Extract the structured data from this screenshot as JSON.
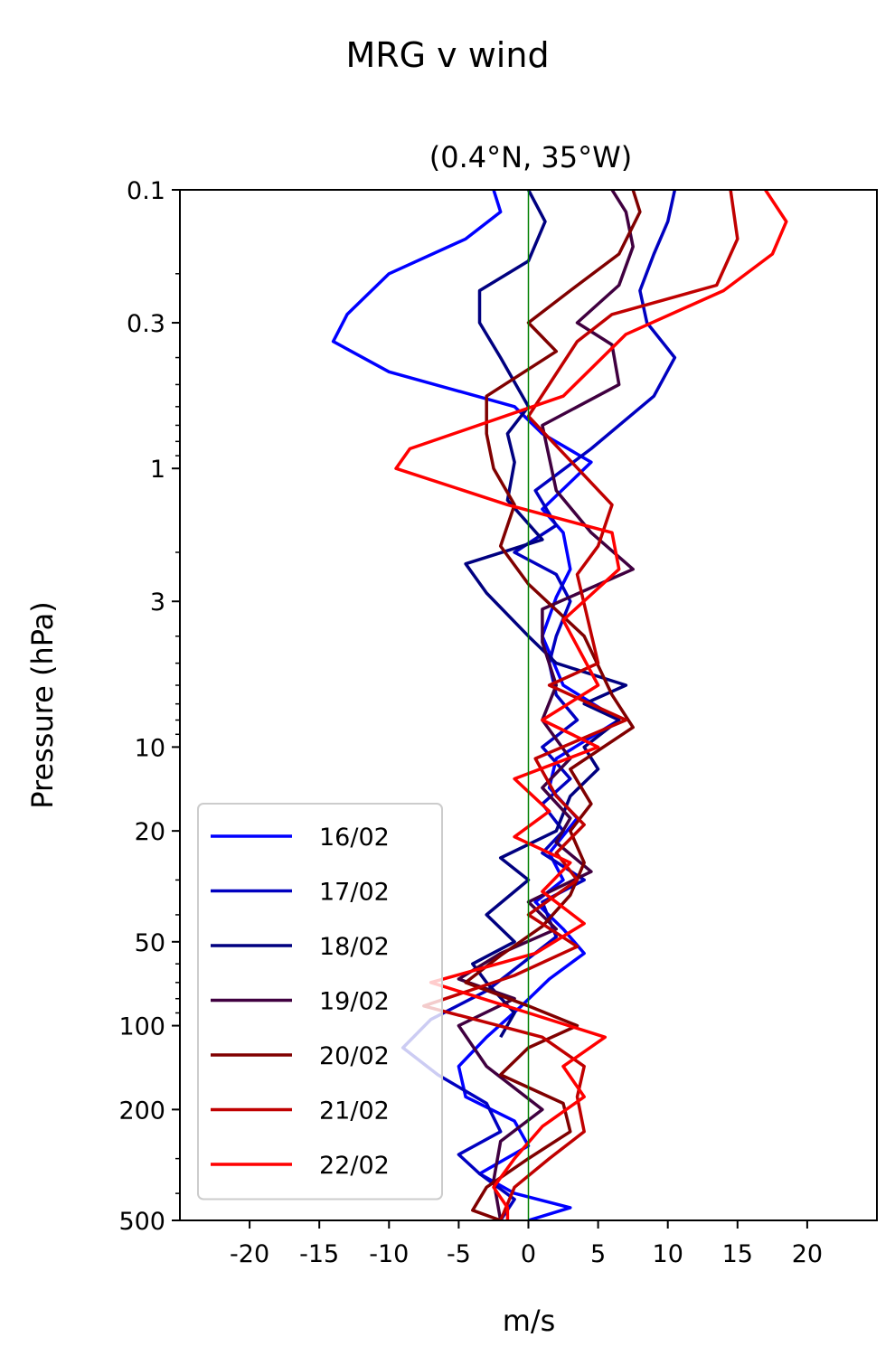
{
  "chart_data": {
    "type": "line",
    "title": "MRG v wind",
    "subtitle": "(0.4°N, 35°W)",
    "xlabel": "m/s",
    "ylabel": "Pressure (hPa)",
    "xlim": [
      -25,
      25
    ],
    "ylim": [
      500,
      0.1
    ],
    "y_scale": "log",
    "x_ticks": [
      -20,
      -15,
      -10,
      -5,
      0,
      5,
      10,
      15,
      20
    ],
    "x_tick_labels": [
      "-20",
      "-15",
      "-10",
      "-5",
      "0",
      "5",
      "10",
      "15",
      "20"
    ],
    "y_ticks": [
      0.1,
      0.3,
      1,
      3,
      10,
      20,
      50,
      100,
      200,
      500
    ],
    "y_tick_labels": [
      "0.1",
      "0.3",
      "1",
      "3",
      "10",
      "20",
      "50",
      "100",
      "200",
      "500"
    ],
    "reference_line": {
      "x": 0,
      "color": "#008000"
    },
    "legend_position": "lower-left",
    "grid": false,
    "series": [
      {
        "name": "16/02",
        "color": "#0000ff",
        "v": [
          -2.5,
          -2,
          -4.5,
          -10,
          -13,
          -14,
          -10,
          -1,
          1,
          4.5,
          1,
          2.5,
          3,
          2,
          1,
          2.5,
          6.5,
          2,
          1.5,
          3.5,
          1.5,
          2.5,
          0.5,
          2.5,
          4,
          1.5,
          -0.5,
          -3,
          -5,
          -4.5,
          -1,
          0,
          -3.5,
          -1,
          3,
          0
        ],
        "p": [
          0.1,
          0.12,
          0.15,
          0.2,
          0.28,
          0.35,
          0.45,
          0.6,
          0.75,
          0.95,
          1.4,
          1.7,
          2.3,
          2.9,
          4,
          6,
          8,
          11,
          14,
          18,
          24,
          30,
          36,
          45,
          55,
          68,
          85,
          110,
          140,
          180,
          220,
          270,
          340,
          400,
          450,
          500
        ]
      },
      {
        "name": "17/02",
        "color": "#0000c0",
        "v": [
          10.5,
          10,
          9,
          8,
          8.5,
          10.5,
          9,
          4.5,
          0.5,
          2,
          -1,
          2,
          3,
          2,
          1.5,
          2,
          3.5,
          1,
          3,
          1,
          2.5,
          1,
          4,
          1,
          2,
          -0.5,
          -3,
          -7,
          -9,
          -6.5,
          -3,
          -2,
          -5,
          -3.5,
          -1,
          -2
        ],
        "p": [
          0.1,
          0.13,
          0.17,
          0.23,
          0.3,
          0.4,
          0.55,
          0.85,
          1.2,
          1.6,
          2,
          2.4,
          3,
          4,
          5,
          6.5,
          8,
          10,
          13,
          16,
          20,
          24,
          30,
          36,
          48,
          60,
          75,
          95,
          120,
          150,
          190,
          240,
          290,
          340,
          420,
          500
        ]
      },
      {
        "name": "18/02",
        "color": "#000080",
        "v": [
          0,
          1.2,
          0,
          -3.5,
          -3.5,
          -2,
          0,
          -1.5,
          -1,
          -1.5,
          1,
          -4.5,
          -3,
          0,
          2,
          7,
          4,
          6.5,
          4,
          5,
          3,
          2,
          -2,
          0,
          -3,
          -1,
          -4,
          -3,
          -1,
          -2
        ],
        "p": [
          0.1,
          0.13,
          0.18,
          0.23,
          0.3,
          0.4,
          0.6,
          0.75,
          0.95,
          1.3,
          1.8,
          2.2,
          2.8,
          4,
          5,
          6,
          7,
          8,
          10,
          12,
          15,
          20,
          25,
          30,
          40,
          50,
          60,
          70,
          90,
          110
        ]
      },
      {
        "name": "19/02",
        "color": "#400040",
        "v": [
          6,
          7,
          7.5,
          6.5,
          3.5,
          6,
          6.5,
          1,
          2,
          4.5,
          7.5,
          1,
          1,
          2,
          1,
          3,
          1,
          3,
          2,
          4.5,
          0,
          2,
          -2,
          -5,
          -1,
          -5,
          -3,
          1,
          -2,
          -2.5,
          -2
        ],
        "p": [
          0.1,
          0.12,
          0.16,
          0.22,
          0.3,
          0.36,
          0.5,
          0.7,
          1.2,
          1.7,
          2.3,
          3.2,
          4.2,
          6,
          8,
          11,
          14,
          18,
          22,
          28,
          36,
          45,
          55,
          68,
          80,
          100,
          140,
          200,
          260,
          360,
          500
        ]
      },
      {
        "name": "20/02",
        "color": "#800000",
        "v": [
          7.5,
          8,
          6.5,
          3,
          0,
          2,
          -3,
          -3,
          -2.5,
          -1,
          -2,
          0,
          4,
          6,
          7.5,
          3,
          4.5,
          3,
          4,
          3,
          1,
          -2,
          -4.5,
          0,
          3.5,
          0,
          -2,
          2.5,
          3,
          0,
          -3,
          -4,
          -2
        ],
        "p": [
          0.1,
          0.12,
          0.17,
          0.23,
          0.3,
          0.38,
          0.55,
          0.75,
          1,
          1.35,
          1.9,
          2.6,
          4,
          6.5,
          8.5,
          12,
          16,
          20,
          26,
          34,
          44,
          56,
          70,
          85,
          100,
          120,
          150,
          190,
          240,
          300,
          380,
          460,
          500
        ]
      },
      {
        "name": "21/02",
        "color": "#c00000",
        "v": [
          14.5,
          15,
          13.5,
          6,
          3.5,
          0,
          6,
          5,
          3.5,
          5,
          1.5,
          7,
          0.5,
          2,
          4,
          2,
          3.5,
          0,
          3.5,
          -1,
          -7.5,
          1,
          4,
          3.5,
          4,
          1.5,
          -1,
          -2
        ],
        "p": [
          0.1,
          0.15,
          0.22,
          0.28,
          0.35,
          0.65,
          1.35,
          1.9,
          2.4,
          5,
          6,
          8,
          11,
          15,
          19,
          24,
          30,
          40,
          52,
          66,
          85,
          110,
          140,
          180,
          240,
          300,
          380,
          500
        ]
      },
      {
        "name": "22/02",
        "color": "#ff0000",
        "v": [
          17,
          18.5,
          17.5,
          14,
          7,
          2.5,
          -8.5,
          -9.5,
          -1.5,
          6,
          6.5,
          2.5,
          5,
          1,
          5,
          -1,
          1.5,
          -1,
          3,
          1,
          4,
          0.5,
          -7,
          0,
          5.5,
          2.5,
          4,
          1,
          -1,
          -2.5,
          -1.5,
          -1.5
        ],
        "p": [
          0.1,
          0.13,
          0.17,
          0.23,
          0.33,
          0.55,
          0.85,
          1,
          1.35,
          1.7,
          2.3,
          3.5,
          6,
          8,
          10,
          13,
          17,
          21,
          26,
          33,
          43,
          55,
          70,
          90,
          110,
          140,
          180,
          230,
          300,
          380,
          450,
          500
        ]
      }
    ]
  }
}
